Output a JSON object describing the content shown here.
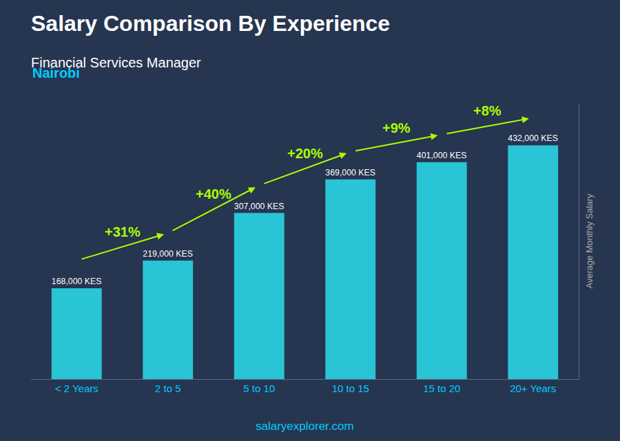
{
  "chart_data": {
    "type": "bar",
    "title": "Salary Comparison By Experience",
    "subtitle": "Financial Services Manager",
    "annotations": [
      "Nairobi",
      "salaryexplorer.com"
    ],
    "ylabel": "Average Monthly Salary",
    "categories": [
      "< 2 Years",
      "2 to 5",
      "5 to 10",
      "10 to 15",
      "15 to 20",
      "20+ Years"
    ],
    "values": [
      168000,
      219000,
      307000,
      369000,
      401000,
      432000
    ],
    "value_labels": [
      "168,000 KES",
      "219,000 KES",
      "307,000 KES",
      "369,000 KES",
      "401,000 KES",
      "432,000 KES"
    ],
    "data_labels": true,
    "pct_changes": [
      null,
      "+31%",
      "+40%",
      "+20%",
      "+9%",
      "+8%"
    ],
    "color": "#29c5d6",
    "ylim": [
      0,
      510000
    ],
    "tick_labels": "x",
    "grid": false
  }
}
